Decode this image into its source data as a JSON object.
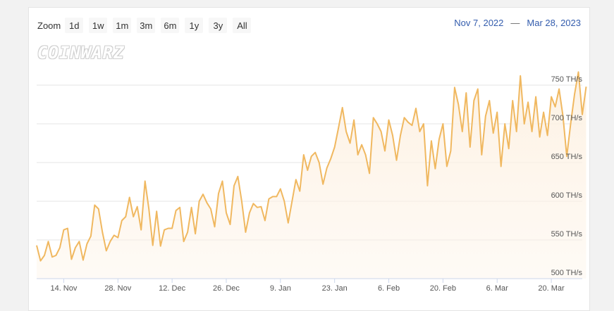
{
  "toolbar": {
    "zoom_label": "Zoom",
    "buttons": [
      "1d",
      "1w",
      "1m",
      "3m",
      "6m",
      "1y",
      "3y",
      "All"
    ]
  },
  "range": {
    "from": "Nov 7, 2022",
    "separator": "—",
    "to": "Mar 28, 2023"
  },
  "logo_text": "COINWARZ",
  "colors": {
    "line": "#f0b860",
    "area": "#fdf2e4",
    "grid": "#e6e6e6",
    "range_text": "#335cad"
  },
  "chart_data": {
    "type": "area",
    "x_axis": {
      "range": [
        "2022-11-07",
        "2023-03-28"
      ],
      "ticks": [
        {
          "date": "2022-11-14",
          "label": "14. Nov"
        },
        {
          "date": "2022-11-28",
          "label": "28. Nov"
        },
        {
          "date": "2022-12-12",
          "label": "12. Dec"
        },
        {
          "date": "2022-12-26",
          "label": "26. Dec"
        },
        {
          "date": "2023-01-09",
          "label": "9. Jan"
        },
        {
          "date": "2023-01-23",
          "label": "23. Jan"
        },
        {
          "date": "2023-02-06",
          "label": "6. Feb"
        },
        {
          "date": "2023-02-20",
          "label": "20. Feb"
        },
        {
          "date": "2023-03-06",
          "label": "6. Mar"
        },
        {
          "date": "2023-03-20",
          "label": "20. Mar"
        }
      ]
    },
    "y_axis": {
      "range": [
        500,
        760
      ],
      "ticks": [
        {
          "value": 500,
          "label": "500 TH/s"
        },
        {
          "value": 550,
          "label": "550 TH/s"
        },
        {
          "value": 600,
          "label": "600 TH/s"
        },
        {
          "value": 650,
          "label": "650 TH/s"
        },
        {
          "value": 700,
          "label": "700 TH/s"
        },
        {
          "value": 750,
          "label": "750 TH/s"
        }
      ]
    },
    "grid": true,
    "series": [
      {
        "points": [
          [
            "2022-11-07",
            543
          ],
          [
            "2022-11-08",
            523
          ],
          [
            "2022-11-09",
            530
          ],
          [
            "2022-11-10",
            548
          ],
          [
            "2022-11-11",
            528
          ],
          [
            "2022-11-12",
            530
          ],
          [
            "2022-11-13",
            540
          ],
          [
            "2022-11-14",
            563
          ],
          [
            "2022-11-15",
            565
          ],
          [
            "2022-11-16",
            525
          ],
          [
            "2022-11-17",
            540
          ],
          [
            "2022-11-18",
            548
          ],
          [
            "2022-11-19",
            524
          ],
          [
            "2022-11-20",
            545
          ],
          [
            "2022-11-21",
            555
          ],
          [
            "2022-11-22",
            595
          ],
          [
            "2022-11-23",
            590
          ],
          [
            "2022-11-24",
            560
          ],
          [
            "2022-11-25",
            536
          ],
          [
            "2022-11-26",
            548
          ],
          [
            "2022-11-27",
            556
          ],
          [
            "2022-11-28",
            553
          ],
          [
            "2022-11-29",
            575
          ],
          [
            "2022-11-30",
            580
          ],
          [
            "2022-12-01",
            605
          ],
          [
            "2022-12-02",
            580
          ],
          [
            "2022-12-03",
            593
          ],
          [
            "2022-12-04",
            563
          ],
          [
            "2022-12-05",
            626
          ],
          [
            "2022-12-06",
            590
          ],
          [
            "2022-12-07",
            543
          ],
          [
            "2022-12-08",
            587
          ],
          [
            "2022-12-09",
            542
          ],
          [
            "2022-12-10",
            563
          ],
          [
            "2022-12-11",
            565
          ],
          [
            "2022-12-12",
            565
          ],
          [
            "2022-12-13",
            588
          ],
          [
            "2022-12-14",
            592
          ],
          [
            "2022-12-15",
            548
          ],
          [
            "2022-12-16",
            560
          ],
          [
            "2022-12-17",
            592
          ],
          [
            "2022-12-18",
            558
          ],
          [
            "2022-12-19",
            600
          ],
          [
            "2022-12-20",
            609
          ],
          [
            "2022-12-21",
            598
          ],
          [
            "2022-12-22",
            590
          ],
          [
            "2022-12-23",
            567
          ],
          [
            "2022-12-24",
            610
          ],
          [
            "2022-12-25",
            626
          ],
          [
            "2022-12-26",
            585
          ],
          [
            "2022-12-27",
            570
          ],
          [
            "2022-12-28",
            620
          ],
          [
            "2022-12-29",
            632
          ],
          [
            "2022-12-30",
            600
          ],
          [
            "2022-12-31",
            560
          ],
          [
            "2023-01-01",
            585
          ],
          [
            "2023-01-02",
            597
          ],
          [
            "2023-01-03",
            592
          ],
          [
            "2023-01-04",
            593
          ],
          [
            "2023-01-05",
            575
          ],
          [
            "2023-01-06",
            603
          ],
          [
            "2023-01-07",
            606
          ],
          [
            "2023-01-08",
            606
          ],
          [
            "2023-01-09",
            616
          ],
          [
            "2023-01-10",
            600
          ],
          [
            "2023-01-11",
            572
          ],
          [
            "2023-01-12",
            600
          ],
          [
            "2023-01-13",
            628
          ],
          [
            "2023-01-14",
            613
          ],
          [
            "2023-01-15",
            660
          ],
          [
            "2023-01-16",
            640
          ],
          [
            "2023-01-17",
            658
          ],
          [
            "2023-01-18",
            663
          ],
          [
            "2023-01-19",
            650
          ],
          [
            "2023-01-20",
            622
          ],
          [
            "2023-01-21",
            643
          ],
          [
            "2023-01-22",
            655
          ],
          [
            "2023-01-23",
            670
          ],
          [
            "2023-01-24",
            695
          ],
          [
            "2023-01-25",
            721
          ],
          [
            "2023-01-26",
            690
          ],
          [
            "2023-01-27",
            675
          ],
          [
            "2023-01-28",
            705
          ],
          [
            "2023-01-29",
            660
          ],
          [
            "2023-01-30",
            673
          ],
          [
            "2023-01-31",
            660
          ],
          [
            "2023-02-01",
            636
          ],
          [
            "2023-02-02",
            708
          ],
          [
            "2023-02-03",
            700
          ],
          [
            "2023-02-04",
            690
          ],
          [
            "2023-02-05",
            665
          ],
          [
            "2023-02-06",
            705
          ],
          [
            "2023-02-07",
            685
          ],
          [
            "2023-02-08",
            653
          ],
          [
            "2023-02-09",
            685
          ],
          [
            "2023-02-10",
            708
          ],
          [
            "2023-02-11",
            702
          ],
          [
            "2023-02-12",
            698
          ],
          [
            "2023-02-13",
            720
          ],
          [
            "2023-02-14",
            690
          ],
          [
            "2023-02-15",
            700
          ],
          [
            "2023-02-16",
            620
          ],
          [
            "2023-02-17",
            678
          ],
          [
            "2023-02-18",
            642
          ],
          [
            "2023-02-19",
            680
          ],
          [
            "2023-02-20",
            700
          ],
          [
            "2023-02-21",
            645
          ],
          [
            "2023-02-22",
            665
          ],
          [
            "2023-02-23",
            747
          ],
          [
            "2023-02-24",
            725
          ],
          [
            "2023-02-25",
            690
          ],
          [
            "2023-02-26",
            740
          ],
          [
            "2023-02-27",
            670
          ],
          [
            "2023-02-28",
            730
          ],
          [
            "2023-03-01",
            745
          ],
          [
            "2023-03-02",
            660
          ],
          [
            "2023-03-03",
            710
          ],
          [
            "2023-03-04",
            730
          ],
          [
            "2023-03-05",
            688
          ],
          [
            "2023-03-06",
            715
          ],
          [
            "2023-03-07",
            645
          ],
          [
            "2023-03-08",
            700
          ],
          [
            "2023-03-09",
            668
          ],
          [
            "2023-03-10",
            730
          ],
          [
            "2023-03-11",
            690
          ],
          [
            "2023-03-12",
            762
          ],
          [
            "2023-03-13",
            700
          ],
          [
            "2023-03-14",
            728
          ],
          [
            "2023-03-15",
            690
          ],
          [
            "2023-03-16",
            735
          ],
          [
            "2023-03-17",
            683
          ],
          [
            "2023-03-18",
            715
          ],
          [
            "2023-03-19",
            685
          ],
          [
            "2023-03-20",
            735
          ],
          [
            "2023-03-21",
            722
          ],
          [
            "2023-03-22",
            745
          ],
          [
            "2023-03-23",
            710
          ],
          [
            "2023-03-24",
            658
          ],
          [
            "2023-03-25",
            700
          ],
          [
            "2023-03-26",
            738
          ],
          [
            "2023-03-27",
            767
          ],
          [
            "2023-03-28",
            712
          ],
          [
            "2023-03-29",
            748
          ]
        ]
      }
    ]
  }
}
